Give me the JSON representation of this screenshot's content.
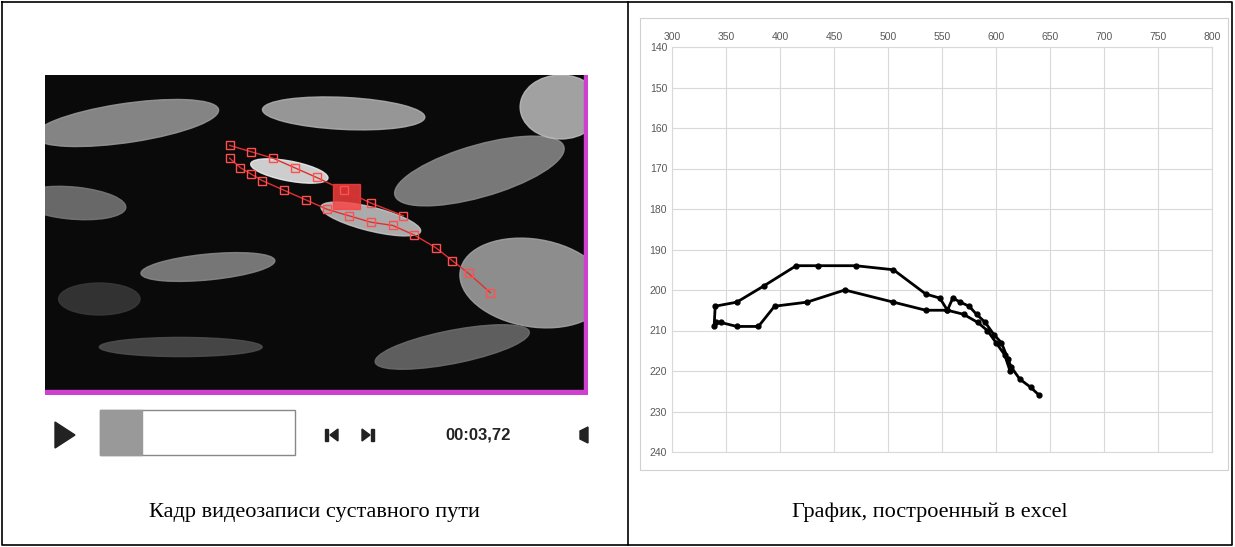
{
  "captions": [
    "Кадр видеозаписи суставного пути",
    "График, построенный в excel"
  ],
  "video_player": {
    "time": "00:03,72"
  },
  "chart_data": {
    "type": "line",
    "color": "#000000",
    "marker": "circle",
    "x": [
      640,
      632,
      622,
      614,
      611,
      605,
      598,
      590,
      582,
      575,
      567,
      560,
      555,
      548,
      535,
      505,
      470,
      435,
      415,
      385,
      360,
      340,
      339,
      341,
      345,
      360,
      380,
      395,
      425,
      460,
      505,
      535,
      555,
      570,
      583,
      592,
      600,
      608,
      613
    ],
    "values": [
      226,
      224,
      222,
      219,
      217,
      213,
      211,
      208,
      206,
      204,
      203,
      202,
      205,
      202,
      201,
      195,
      194,
      194,
      194,
      199,
      203,
      204,
      209,
      208,
      208,
      209,
      209,
      204,
      203,
      200,
      203,
      205,
      205,
      206,
      208,
      210,
      213,
      216,
      220
    ],
    "xlim": [
      300,
      800
    ],
    "xticks": [
      300,
      350,
      400,
      450,
      500,
      550,
      600,
      650,
      700,
      750,
      800
    ],
    "ylim": [
      240,
      140
    ],
    "yticks": [
      140,
      150,
      160,
      170,
      180,
      190,
      200,
      210,
      220,
      230,
      240
    ],
    "grid": true
  }
}
